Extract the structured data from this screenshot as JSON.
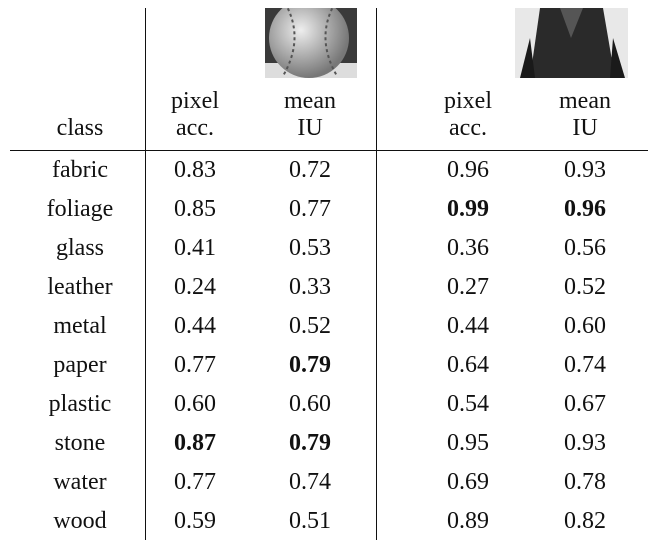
{
  "table": {
    "header": [
      [
        "class"
      ],
      [
        "pixel",
        "acc."
      ],
      [
        "mean",
        "IU"
      ],
      [
        "pixel",
        "acc."
      ],
      [
        "mean",
        "IU"
      ]
    ],
    "rows": [
      [
        "fabric",
        "0.83",
        "0.72",
        "0.96",
        "0.93"
      ],
      [
        "foliage",
        "0.85",
        "0.77",
        "0.99",
        "0.96"
      ],
      [
        "glass",
        "0.41",
        "0.53",
        "0.36",
        "0.56"
      ],
      [
        "leather",
        "0.24",
        "0.33",
        "0.27",
        "0.52"
      ],
      [
        "metal",
        "0.44",
        "0.52",
        "0.44",
        "0.60"
      ],
      [
        "paper",
        "0.77",
        "0.79",
        "0.64",
        "0.74"
      ],
      [
        "plastic",
        "0.60",
        "0.60",
        "0.54",
        "0.67"
      ],
      [
        "stone",
        "0.87",
        "0.79",
        "0.95",
        "0.93"
      ],
      [
        "water",
        "0.77",
        "0.74",
        "0.69",
        "0.78"
      ],
      [
        "wood",
        "0.59",
        "0.51",
        "0.89",
        "0.82"
      ]
    ],
    "bold_cells": [
      [
        1,
        3
      ],
      [
        1,
        4
      ],
      [
        5,
        2
      ],
      [
        7,
        1
      ],
      [
        7,
        2
      ]
    ]
  }
}
